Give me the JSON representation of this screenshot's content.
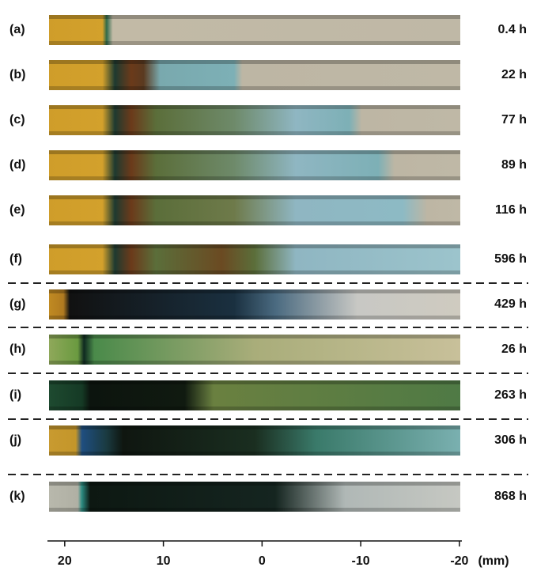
{
  "panels": [
    {
      "label": "(a)",
      "time": "0.4 h"
    },
    {
      "label": "(b)",
      "time": "22 h"
    },
    {
      "label": "(c)",
      "time": "77 h"
    },
    {
      "label": "(d)",
      "time": "89 h"
    },
    {
      "label": "(e)",
      "time": "116 h"
    },
    {
      "label": "(f)",
      "time": "596 h"
    },
    {
      "label": "(g)",
      "time": "429 h"
    },
    {
      "label": "(h)",
      "time": "26 h"
    },
    {
      "label": "(i)",
      "time": "263 h"
    },
    {
      "label": "(j)",
      "time": "306 h"
    },
    {
      "label": "(k)",
      "time": "868 h"
    }
  ],
  "axis": {
    "xlim": [
      21.75,
      -20.25
    ],
    "xticks": [
      20,
      10,
      0,
      -10,
      -20
    ],
    "unit": "(mm)"
  }
}
